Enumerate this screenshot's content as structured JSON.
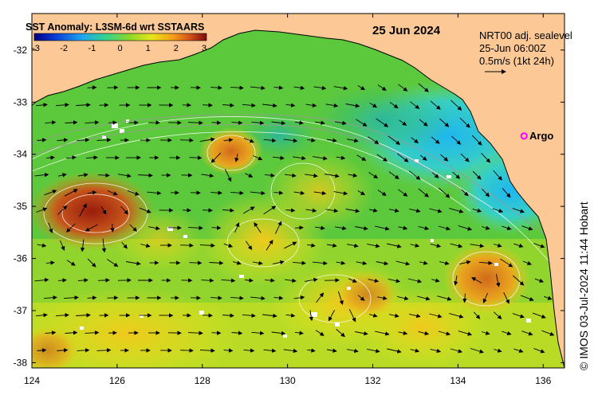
{
  "map": {
    "date_title": "25 Jun 2024",
    "colorbar": {
      "title": "SST Anomaly: L3SM-6d wrt SSTAARS",
      "ticks": [
        "-3",
        "-2",
        "-1",
        "0",
        "1",
        "2",
        "3"
      ],
      "colors": [
        "#00007f",
        "#0a3cd6",
        "#1fa6ee",
        "#37d48a",
        "#8ad62a",
        "#e6e61a",
        "#f5a21a",
        "#d2561a",
        "#7f0a0a"
      ]
    },
    "legend": {
      "line1": "NRT00 adj. sealevel",
      "line2": "25-Jun 06:00Z",
      "line3": "0.5m/s (1kt 24h)"
    },
    "argo": {
      "label": "Argo",
      "lon": 135.55,
      "lat": -33.65,
      "color": "#ff00ff"
    },
    "x_axis": {
      "ticks": [
        "124",
        "126",
        "128",
        "130",
        "132",
        "134",
        "136"
      ],
      "values": [
        124,
        126,
        128,
        130,
        132,
        134,
        136
      ]
    },
    "y_axis": {
      "ticks": [
        "-32",
        "-33",
        "-34",
        "-35",
        "-36",
        "-37",
        "-38"
      ],
      "values": [
        -32,
        -33,
        -34,
        -35,
        -36,
        -37,
        -38
      ]
    },
    "land_color": "#fbc896",
    "copyright": "© IMOS 03-Jul-2024 11:44 Hobart"
  }
}
